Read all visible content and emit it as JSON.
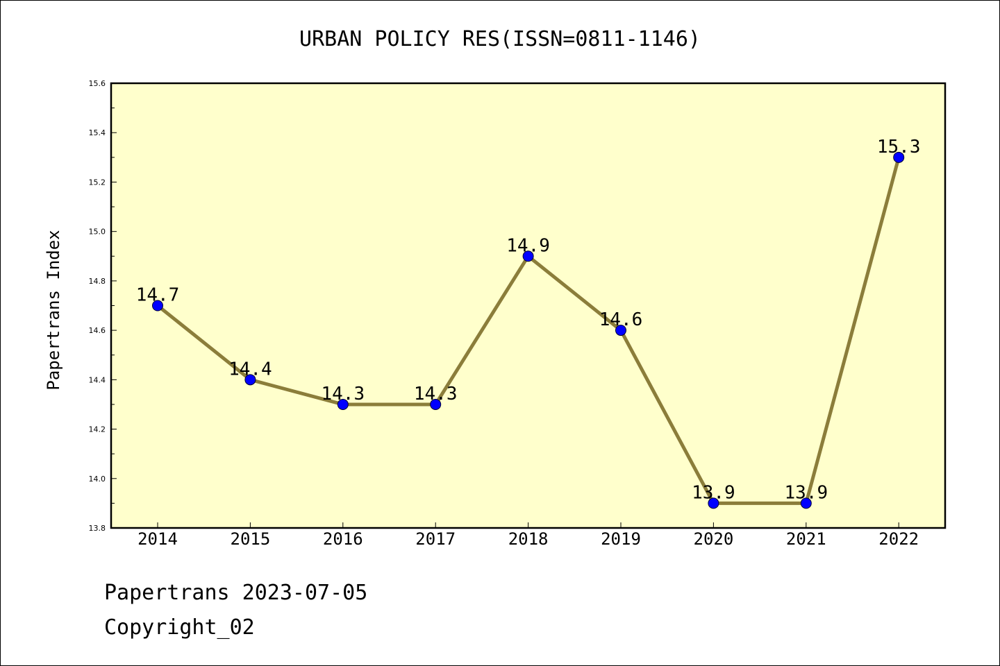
{
  "chart_data": {
    "type": "line",
    "title": "URBAN POLICY RES(ISSN=0811-1146)",
    "ylabel": "Papertrans Index",
    "xlabel": "",
    "categories": [
      "2014",
      "2015",
      "2016",
      "2017",
      "2018",
      "2019",
      "2020",
      "2021",
      "2022"
    ],
    "series": [
      {
        "values": [
          14.7,
          14.4,
          14.3,
          14.3,
          14.9,
          14.6,
          13.9,
          13.9,
          15.3
        ]
      }
    ],
    "data_labels": [
      "14.7",
      "14.4",
      "14.3",
      "14.3",
      "14.9",
      "14.6",
      "13.9",
      "13.9",
      "15.3"
    ],
    "ylim": [
      13.8,
      15.6
    ],
    "yticks": [
      "13.8",
      "14.0",
      "14.2",
      "14.4",
      "14.6",
      "14.8",
      "15.0",
      "15.2",
      "15.4",
      "15.6"
    ],
    "grid": false,
    "legend": "none",
    "colors": {
      "plot_background": "#ffffcc",
      "line": "#8b7d3a",
      "marker": "#0000ff"
    }
  },
  "footer": {
    "line1": "Papertrans 2023-07-05",
    "line2": "Copyright_02"
  }
}
